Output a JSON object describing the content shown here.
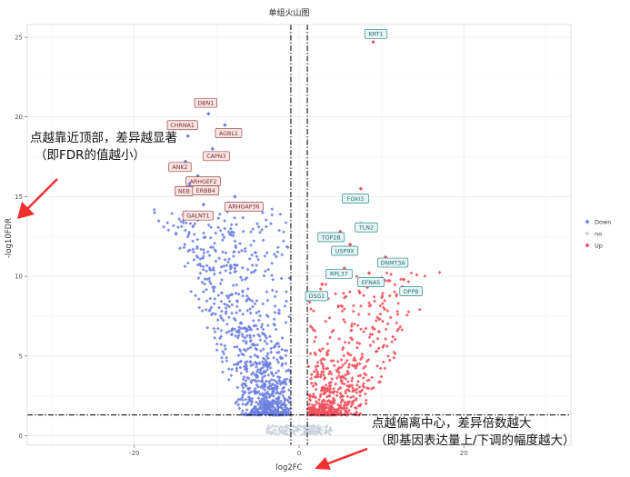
{
  "chart_data": {
    "type": "scatter",
    "title": "单组火山图",
    "xlabel": "log2FC",
    "ylabel": "-log10FDR",
    "xlim": [
      -33,
      33
    ],
    "ylim": [
      -0.6,
      25.8
    ],
    "xticks": [
      -20,
      0,
      20
    ],
    "yticks": [
      0,
      5,
      10,
      15,
      20,
      25
    ],
    "grid": true,
    "legend_position": "right",
    "thresholds": {
      "log2fc": [
        -1,
        1
      ],
      "neg_log10_fdr": 1.3
    },
    "series": [
      {
        "name": "Down",
        "color": "#6d7fe0",
        "shape": "diamond"
      },
      {
        "name": "no",
        "color": "#c9d2dc",
        "shape": "diamond"
      },
      {
        "name": "Up",
        "color": "#f2515e",
        "shape": "diamond"
      }
    ],
    "labeled_points": [
      {
        "gene": "KRT1",
        "x": 9.0,
        "y": 24.7,
        "group": "Up"
      },
      {
        "gene": "DBN1",
        "x": -11.0,
        "y": 20.2,
        "group": "Down"
      },
      {
        "gene": "CHRNA1",
        "x": -13.5,
        "y": 18.8,
        "group": "Down"
      },
      {
        "gene": "AGBL1",
        "x": -9.0,
        "y": 19.5,
        "group": "Down"
      },
      {
        "gene": "CAPN3",
        "x": -10.5,
        "y": 18.0,
        "group": "Down"
      },
      {
        "gene": "ANK2",
        "x": -13.8,
        "y": 17.2,
        "group": "Down"
      },
      {
        "gene": "ARHGEF2",
        "x": -12.3,
        "y": 16.3,
        "group": "Down"
      },
      {
        "gene": "NEB",
        "x": -13.3,
        "y": 15.8,
        "group": "Down"
      },
      {
        "gene": "ERBB4",
        "x": -12.0,
        "y": 15.5,
        "group": "Down"
      },
      {
        "gene": "GALNT1",
        "x": -11.6,
        "y": 14.5,
        "group": "Down"
      },
      {
        "gene": "ARHGAP36",
        "x": -7.8,
        "y": 15.0,
        "group": "Down"
      },
      {
        "gene": "FOXI3",
        "x": 7.5,
        "y": 15.5,
        "group": "Up"
      },
      {
        "gene": "TLN2",
        "x": 7.5,
        "y": 13.3,
        "group": "Up"
      },
      {
        "gene": "TOP2B",
        "x": 5.0,
        "y": 12.8,
        "group": "Up"
      },
      {
        "gene": "USP9X",
        "x": 6.2,
        "y": 12.0,
        "group": "Up"
      },
      {
        "gene": "DNMT3A",
        "x": 10.5,
        "y": 11.2,
        "group": "Up"
      },
      {
        "gene": "RPL37",
        "x": 5.5,
        "y": 10.5,
        "group": "Up"
      },
      {
        "gene": "EFNA5",
        "x": 8.5,
        "y": 10.2,
        "group": "Up"
      },
      {
        "gene": "DSG1",
        "x": 2.8,
        "y": 9.5,
        "group": "Up"
      },
      {
        "gene": "DPP8",
        "x": 12.7,
        "y": 9.8,
        "group": "Up"
      }
    ]
  },
  "annotations": {
    "top_line1": "点越靠近顶部，差异越显著",
    "top_line2": "（即FDR的值越小）",
    "bottom_line1": "点越偏离中心，差异倍数越大",
    "bottom_line2": "（即基因表达量上/下调的幅度越大）"
  }
}
